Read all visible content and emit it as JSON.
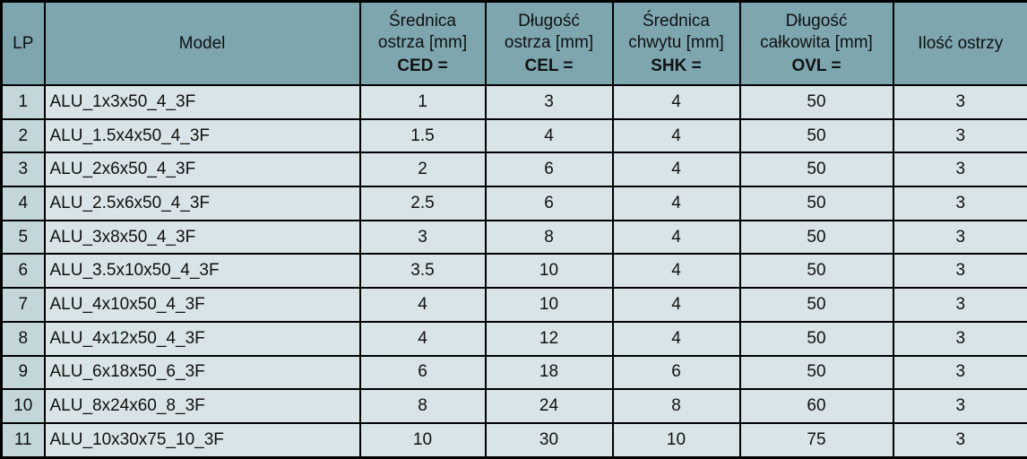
{
  "colors": {
    "header_bg": "#7da6af",
    "row_bg": "#d8e4e7",
    "lp_column_bg": "#c3d7db",
    "border": "#000000",
    "text": "#111111"
  },
  "columns": {
    "lp": "LP",
    "model": "Model",
    "ced": {
      "line1": "Średnica",
      "line2": "ostrza [mm]",
      "code": "CED ="
    },
    "cel": {
      "line1": "Długość",
      "line2": "ostrza [mm]",
      "code": "CEL ="
    },
    "shk": {
      "line1": "Średnica",
      "line2": "chwytu [mm]",
      "code": "SHK ="
    },
    "ovl": {
      "line1": "Długość",
      "line2": "całkowita [mm]",
      "code": "OVL ="
    },
    "blades": "Ilość ostrzy"
  },
  "rows": [
    {
      "lp": "1",
      "model": "ALU_1x3x50_4_3F",
      "ced": "1",
      "cel": "3",
      "shk": "4",
      "ovl": "50",
      "blades": "3"
    },
    {
      "lp": "2",
      "model": "ALU_1.5x4x50_4_3F",
      "ced": "1.5",
      "cel": "4",
      "shk": "4",
      "ovl": "50",
      "blades": "3"
    },
    {
      "lp": "3",
      "model": "ALU_2x6x50_4_3F",
      "ced": "2",
      "cel": "6",
      "shk": "4",
      "ovl": "50",
      "blades": "3"
    },
    {
      "lp": "4",
      "model": "ALU_2.5x6x50_4_3F",
      "ced": "2.5",
      "cel": "6",
      "shk": "4",
      "ovl": "50",
      "blades": "3"
    },
    {
      "lp": "5",
      "model": "ALU_3x8x50_4_3F",
      "ced": "3",
      "cel": "8",
      "shk": "4",
      "ovl": "50",
      "blades": "3"
    },
    {
      "lp": "6",
      "model": "ALU_3.5x10x50_4_3F",
      "ced": "3.5",
      "cel": "10",
      "shk": "4",
      "ovl": "50",
      "blades": "3"
    },
    {
      "lp": "7",
      "model": "ALU_4x10x50_4_3F",
      "ced": "4",
      "cel": "10",
      "shk": "4",
      "ovl": "50",
      "blades": "3"
    },
    {
      "lp": "8",
      "model": "ALU_4x12x50_4_3F",
      "ced": "4",
      "cel": "12",
      "shk": "4",
      "ovl": "50",
      "blades": "3"
    },
    {
      "lp": "9",
      "model": "ALU_6x18x50_6_3F",
      "ced": "6",
      "cel": "18",
      "shk": "6",
      "ovl": "50",
      "blades": "3"
    },
    {
      "lp": "10",
      "model": "ALU_8x24x60_8_3F",
      "ced": "8",
      "cel": "24",
      "shk": "8",
      "ovl": "60",
      "blades": "3"
    },
    {
      "lp": "11",
      "model": "ALU_10x30x75_10_3F",
      "ced": "10",
      "cel": "30",
      "shk": "10",
      "ovl": "75",
      "blades": "3"
    }
  ]
}
